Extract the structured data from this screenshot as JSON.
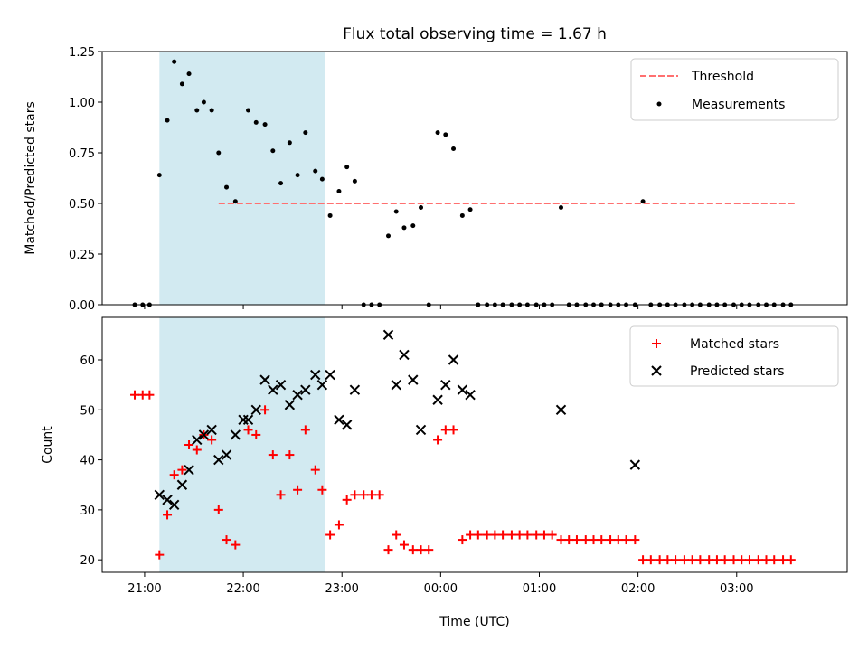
{
  "chart_data": {
    "title": "Flux total observing time = 1.67 h",
    "xlabel": "Time (UTC)",
    "x_tick_labels": [
      "21:00",
      "22:00",
      "23:00",
      "00:00",
      "01:00",
      "02:00",
      "03:00"
    ],
    "x_tick_hours": [
      21,
      22,
      23,
      24,
      25,
      26,
      27
    ],
    "x_range_hours": [
      20.57,
      28.12
    ],
    "shaded_interval_hours": [
      21.15,
      22.83
    ],
    "shade_color": "#add8e6",
    "panels": [
      {
        "type": "scatter",
        "ylabel": "Matched/Predicted stars",
        "ylim": [
          0,
          1.25
        ],
        "y_ticks": [
          0,
          0.25,
          0.5,
          0.75,
          1.0,
          1.25
        ],
        "y_tick_labels": [
          "0.00",
          "0.25",
          "0.50",
          "0.75",
          "1.00",
          "1.25"
        ],
        "legend_position": "top-right",
        "threshold": {
          "name": "Threshold",
          "value": 0.5,
          "x_range": [
            21.75,
            27.6
          ],
          "color": "#ff7070"
        },
        "series": [
          {
            "name": "Measurements",
            "color": "#000000",
            "marker": "dot",
            "x": [
              20.9,
              20.98,
              21.05,
              21.15,
              21.23,
              21.3,
              21.38,
              21.45,
              21.53,
              21.6,
              21.68,
              21.75,
              21.83,
              21.92,
              22.05,
              22.13,
              22.22,
              22.3,
              22.38,
              22.47,
              22.55,
              22.63,
              22.73,
              22.8,
              22.88,
              22.97,
              23.05,
              23.13,
              23.22,
              23.3,
              23.38,
              23.47,
              23.55,
              23.63,
              23.72,
              23.8,
              23.88,
              23.97,
              24.05,
              24.13,
              24.22,
              24.3,
              24.38,
              24.47,
              24.55,
              24.63,
              24.72,
              24.8,
              24.88,
              24.97,
              25.05,
              25.13,
              25.22,
              25.3,
              25.38,
              25.47,
              25.55,
              25.63,
              25.72,
              25.8,
              25.88,
              25.97,
              26.05,
              26.13,
              26.22,
              26.3,
              26.38,
              26.47,
              26.55,
              26.63,
              26.72,
              26.8,
              26.88,
              26.97,
              27.05,
              27.13,
              27.22,
              27.3,
              27.38,
              27.47,
              27.55
            ],
            "y": [
              0,
              0,
              0,
              0.64,
              0.91,
              1.2,
              1.09,
              1.14,
              0.96,
              1.0,
              0.96,
              0.75,
              0.58,
              0.51,
              0.96,
              0.9,
              0.89,
              0.76,
              0.6,
              0.8,
              0.64,
              0.85,
              0.66,
              0.62,
              0.44,
              0.56,
              0.68,
              0.61,
              0,
              0,
              0,
              0.34,
              0.46,
              0.38,
              0.39,
              0.48,
              0,
              0.85,
              0.84,
              0.77,
              0.44,
              0.47,
              0,
              0,
              0,
              0,
              0,
              0,
              0,
              0,
              0,
              0,
              0.48,
              0,
              0,
              0,
              0,
              0,
              0,
              0,
              0,
              0,
              0.51,
              0,
              0,
              0,
              0,
              0,
              0,
              0,
              0,
              0,
              0,
              0,
              0,
              0,
              0,
              0,
              0,
              0,
              0
            ]
          }
        ]
      },
      {
        "type": "scatter",
        "ylabel": "Count",
        "ylim": [
          17.5,
          68.5
        ],
        "y_ticks": [
          20,
          30,
          40,
          50,
          60
        ],
        "y_tick_labels": [
          "20",
          "30",
          "40",
          "50",
          "60"
        ],
        "legend_position": "top-right",
        "series": [
          {
            "name": "Matched stars",
            "color": "#ff0000",
            "marker": "plus",
            "x": [
              20.9,
              20.98,
              21.05,
              21.15,
              21.23,
              21.3,
              21.38,
              21.45,
              21.53,
              21.6,
              21.68,
              21.75,
              21.83,
              21.92,
              22.05,
              22.13,
              22.22,
              22.3,
              22.38,
              22.47,
              22.55,
              22.63,
              22.73,
              22.8,
              22.88,
              22.97,
              23.05,
              23.13,
              23.22,
              23.3,
              23.38,
              23.47,
              23.55,
              23.63,
              23.72,
              23.8,
              23.88,
              23.97,
              24.05,
              24.13,
              24.22,
              24.3,
              24.38,
              24.47,
              24.55,
              24.63,
              24.72,
              24.8,
              24.88,
              24.97,
              25.05,
              25.13,
              25.22,
              25.3,
              25.38,
              25.47,
              25.55,
              25.63,
              25.72,
              25.8,
              25.88,
              25.97,
              26.05,
              26.13,
              26.22,
              26.3,
              26.38,
              26.47,
              26.55,
              26.63,
              26.72,
              26.8,
              26.88,
              26.97,
              27.05,
              27.13,
              27.22,
              27.3,
              27.38,
              27.47,
              27.55
            ],
            "y": [
              53,
              53,
              53,
              21,
              29,
              37,
              38,
              43,
              42,
              45,
              44,
              30,
              24,
              23,
              46,
              45,
              50,
              41,
              33,
              41,
              34,
              46,
              38,
              34,
              25,
              27,
              32,
              33,
              33,
              33,
              33,
              22,
              25,
              23,
              22,
              22,
              22,
              44,
              46,
              46,
              24,
              25,
              25,
              25,
              25,
              25,
              25,
              25,
              25,
              25,
              25,
              25,
              24,
              24,
              24,
              24,
              24,
              24,
              24,
              24,
              24,
              24,
              20,
              20,
              20,
              20,
              20,
              20,
              20,
              20,
              20,
              20,
              20,
              20,
              20,
              20,
              20,
              20,
              20,
              20,
              20
            ]
          },
          {
            "name": "Predicted stars",
            "color": "#000000",
            "marker": "x",
            "x": [
              21.15,
              21.23,
              21.3,
              21.38,
              21.45,
              21.53,
              21.6,
              21.68,
              21.75,
              21.83,
              21.92,
              22.0,
              22.05,
              22.13,
              22.22,
              22.3,
              22.38,
              22.47,
              22.55,
              22.63,
              22.73,
              22.8,
              22.88,
              22.97,
              23.05,
              23.13,
              23.47,
              23.55,
              23.63,
              23.72,
              23.8,
              23.97,
              24.05,
              24.13,
              24.22,
              24.3,
              25.22,
              25.97
            ],
            "y": [
              33,
              32,
              31,
              35,
              38,
              44,
              45,
              46,
              40,
              41,
              45,
              48,
              48,
              50,
              56,
              54,
              55,
              51,
              53,
              54,
              57,
              55,
              57,
              48,
              47,
              54,
              65,
              55,
              61,
              56,
              46,
              52,
              55,
              60,
              54,
              53,
              50,
              39
            ]
          }
        ]
      }
    ]
  }
}
